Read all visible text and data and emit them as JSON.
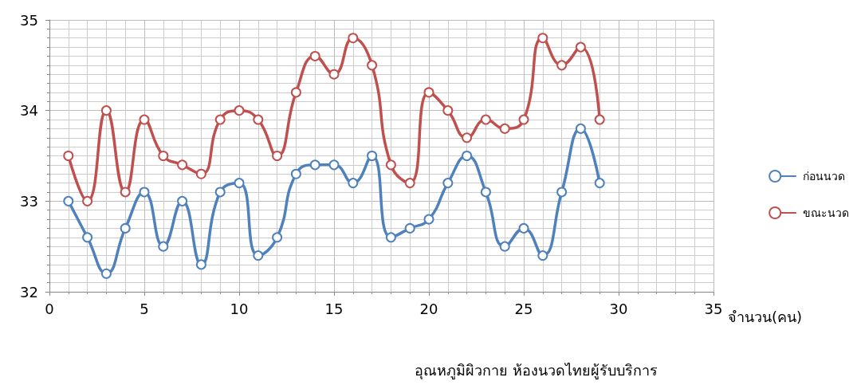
{
  "chart_data": {
    "type": "line",
    "xlabel": "จำนวน(คน)",
    "annotations": [
      "อุณหภูมิผิวกาย ห้องนวดไทยผู้รับบริการ"
    ],
    "x": [
      1,
      2,
      3,
      4,
      5,
      6,
      7,
      8,
      9,
      10,
      11,
      12,
      13,
      14,
      15,
      16,
      17,
      18,
      19,
      20,
      21,
      22,
      23,
      24,
      25,
      26,
      27,
      28,
      29
    ],
    "series": [
      {
        "name": "ก่อนนวด",
        "color": "#4f81bd",
        "values": [
          33.0,
          32.6,
          32.2,
          32.7,
          33.1,
          32.5,
          33.0,
          32.3,
          33.1,
          33.2,
          32.4,
          32.6,
          33.3,
          33.4,
          33.4,
          33.2,
          33.5,
          32.6,
          32.7,
          32.8,
          33.2,
          33.5,
          33.1,
          32.5,
          32.7,
          32.4,
          33.1,
          33.8,
          33.2
        ]
      },
      {
        "name": "ขณะนวด",
        "color": "#c0504d",
        "values": [
          33.5,
          33.0,
          34.0,
          33.1,
          33.9,
          33.5,
          33.4,
          33.3,
          33.9,
          34.0,
          33.9,
          33.5,
          34.2,
          34.6,
          34.4,
          34.8,
          34.5,
          33.4,
          33.2,
          34.2,
          34.0,
          33.7,
          33.9,
          33.8,
          33.9,
          34.8,
          34.5,
          34.7,
          33.9
        ]
      }
    ],
    "xlim": [
      0,
      35
    ],
    "xticks": [
      0,
      5,
      10,
      15,
      20,
      25,
      30,
      35
    ],
    "ylim": [
      32,
      35
    ],
    "yticks": [
      32,
      33,
      34,
      35
    ],
    "grid": true,
    "legend": "right",
    "marker": "circle",
    "line_style": "solid"
  }
}
